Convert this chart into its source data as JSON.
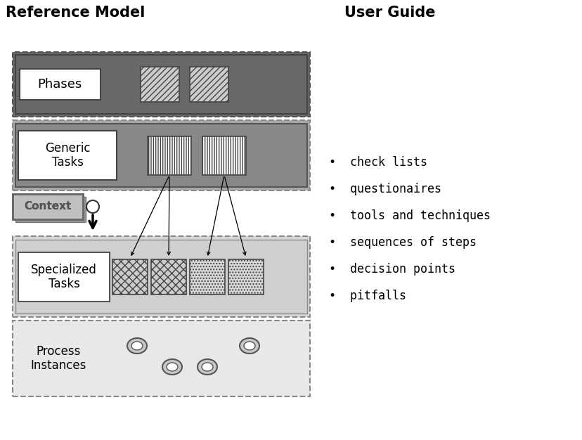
{
  "title_left": "Reference Model",
  "title_right": "User Guide",
  "phases_label": "Phases",
  "generic_tasks_label": "Generic\nTasks",
  "context_label": "Context",
  "specialized_tasks_label": "Specialized\nTasks",
  "process_instances_label": "Process\nInstances",
  "user_guide_items": [
    "check lists",
    "questionaires",
    "tools and techniques",
    "sequences of steps",
    "decision points",
    "pitfalls"
  ],
  "bg_color": "#ffffff",
  "phases_fc": "#686868",
  "phases_ec": "#555555",
  "generic_fc": "#888888",
  "generic_ec": "#555555",
  "generic_outer_fc": "#aaaaaa",
  "context_fc": "#aaaaaa",
  "context_ec": "#666666",
  "spec_fc": "#cccccc",
  "spec_ec": "#888888",
  "proc_fc": "#e0e0e0",
  "proc_ec": "#888888",
  "white": "#ffffff",
  "label_ec": "#555555"
}
